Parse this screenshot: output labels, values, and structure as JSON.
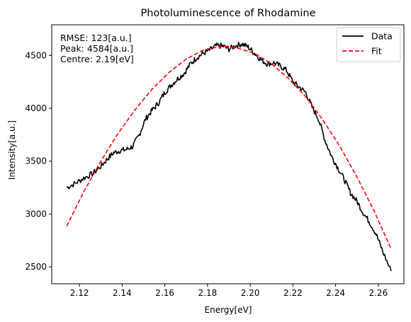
{
  "chart_data": {
    "type": "line",
    "title": "Photoluminescence of Rhodamine",
    "xlabel": "Energy[eV]",
    "ylabel": "Intensity[a.u.]",
    "xlim": [
      2.107,
      2.272
    ],
    "ylim": [
      2340,
      4790
    ],
    "xticks": [
      2.12,
      2.14,
      2.16,
      2.18,
      2.2,
      2.22,
      2.24,
      2.26
    ],
    "xtick_labels": [
      "2.12",
      "2.14",
      "2.16",
      "2.18",
      "2.20",
      "2.22",
      "2.24",
      "2.26"
    ],
    "yticks": [
      2500,
      3000,
      3500,
      4000,
      4500
    ],
    "ytick_labels": [
      "2500",
      "3000",
      "3500",
      "4000",
      "4500"
    ],
    "grid": false,
    "legend_position": "top-right",
    "annotations": [
      "RMSE: 123[a.u.]",
      "Peak: 4584[a.u.]",
      "Centre: 2.19[eV]"
    ],
    "series": [
      {
        "name": "Data",
        "color": "#000000",
        "style": "solid",
        "x": [
          2.114,
          2.118,
          2.122,
          2.126,
          2.13,
          2.133,
          2.136,
          2.139,
          2.142,
          2.145,
          2.148,
          2.151,
          2.154,
          2.157,
          2.16,
          2.163,
          2.166,
          2.169,
          2.172,
          2.175,
          2.178,
          2.181,
          2.184,
          2.187,
          2.19,
          2.193,
          2.196,
          2.199,
          2.202,
          2.205,
          2.208,
          2.211,
          2.214,
          2.217,
          2.22,
          2.223,
          2.226,
          2.229,
          2.232,
          2.235,
          2.238,
          2.241,
          2.244,
          2.247,
          2.25,
          2.253,
          2.256,
          2.259,
          2.262,
          2.266
        ],
        "y": [
          3250,
          3290,
          3340,
          3380,
          3450,
          3520,
          3580,
          3600,
          3610,
          3640,
          3750,
          3900,
          3980,
          4050,
          4150,
          4220,
          4280,
          4330,
          4420,
          4480,
          4520,
          4550,
          4590,
          4590,
          4560,
          4590,
          4610,
          4580,
          4520,
          4460,
          4420,
          4430,
          4400,
          4360,
          4250,
          4200,
          4150,
          4010,
          3900,
          3700,
          3550,
          3440,
          3330,
          3200,
          3120,
          3010,
          2920,
          2810,
          2650,
          2460
        ]
      },
      {
        "name": "Fit",
        "color": "#ff0000",
        "style": "dashed",
        "x": [
          2.114,
          2.122,
          2.13,
          2.138,
          2.146,
          2.154,
          2.162,
          2.17,
          2.178,
          2.186,
          2.19,
          2.194,
          2.202,
          2.21,
          2.218,
          2.226,
          2.234,
          2.242,
          2.25,
          2.258,
          2.266
        ],
        "y": [
          2885,
          3210,
          3500,
          3760,
          3985,
          4180,
          4340,
          4465,
          4550,
          4584,
          4584,
          4570,
          4520,
          4420,
          4280,
          4110,
          3890,
          3640,
          3350,
          3030,
          2670
        ]
      }
    ]
  }
}
